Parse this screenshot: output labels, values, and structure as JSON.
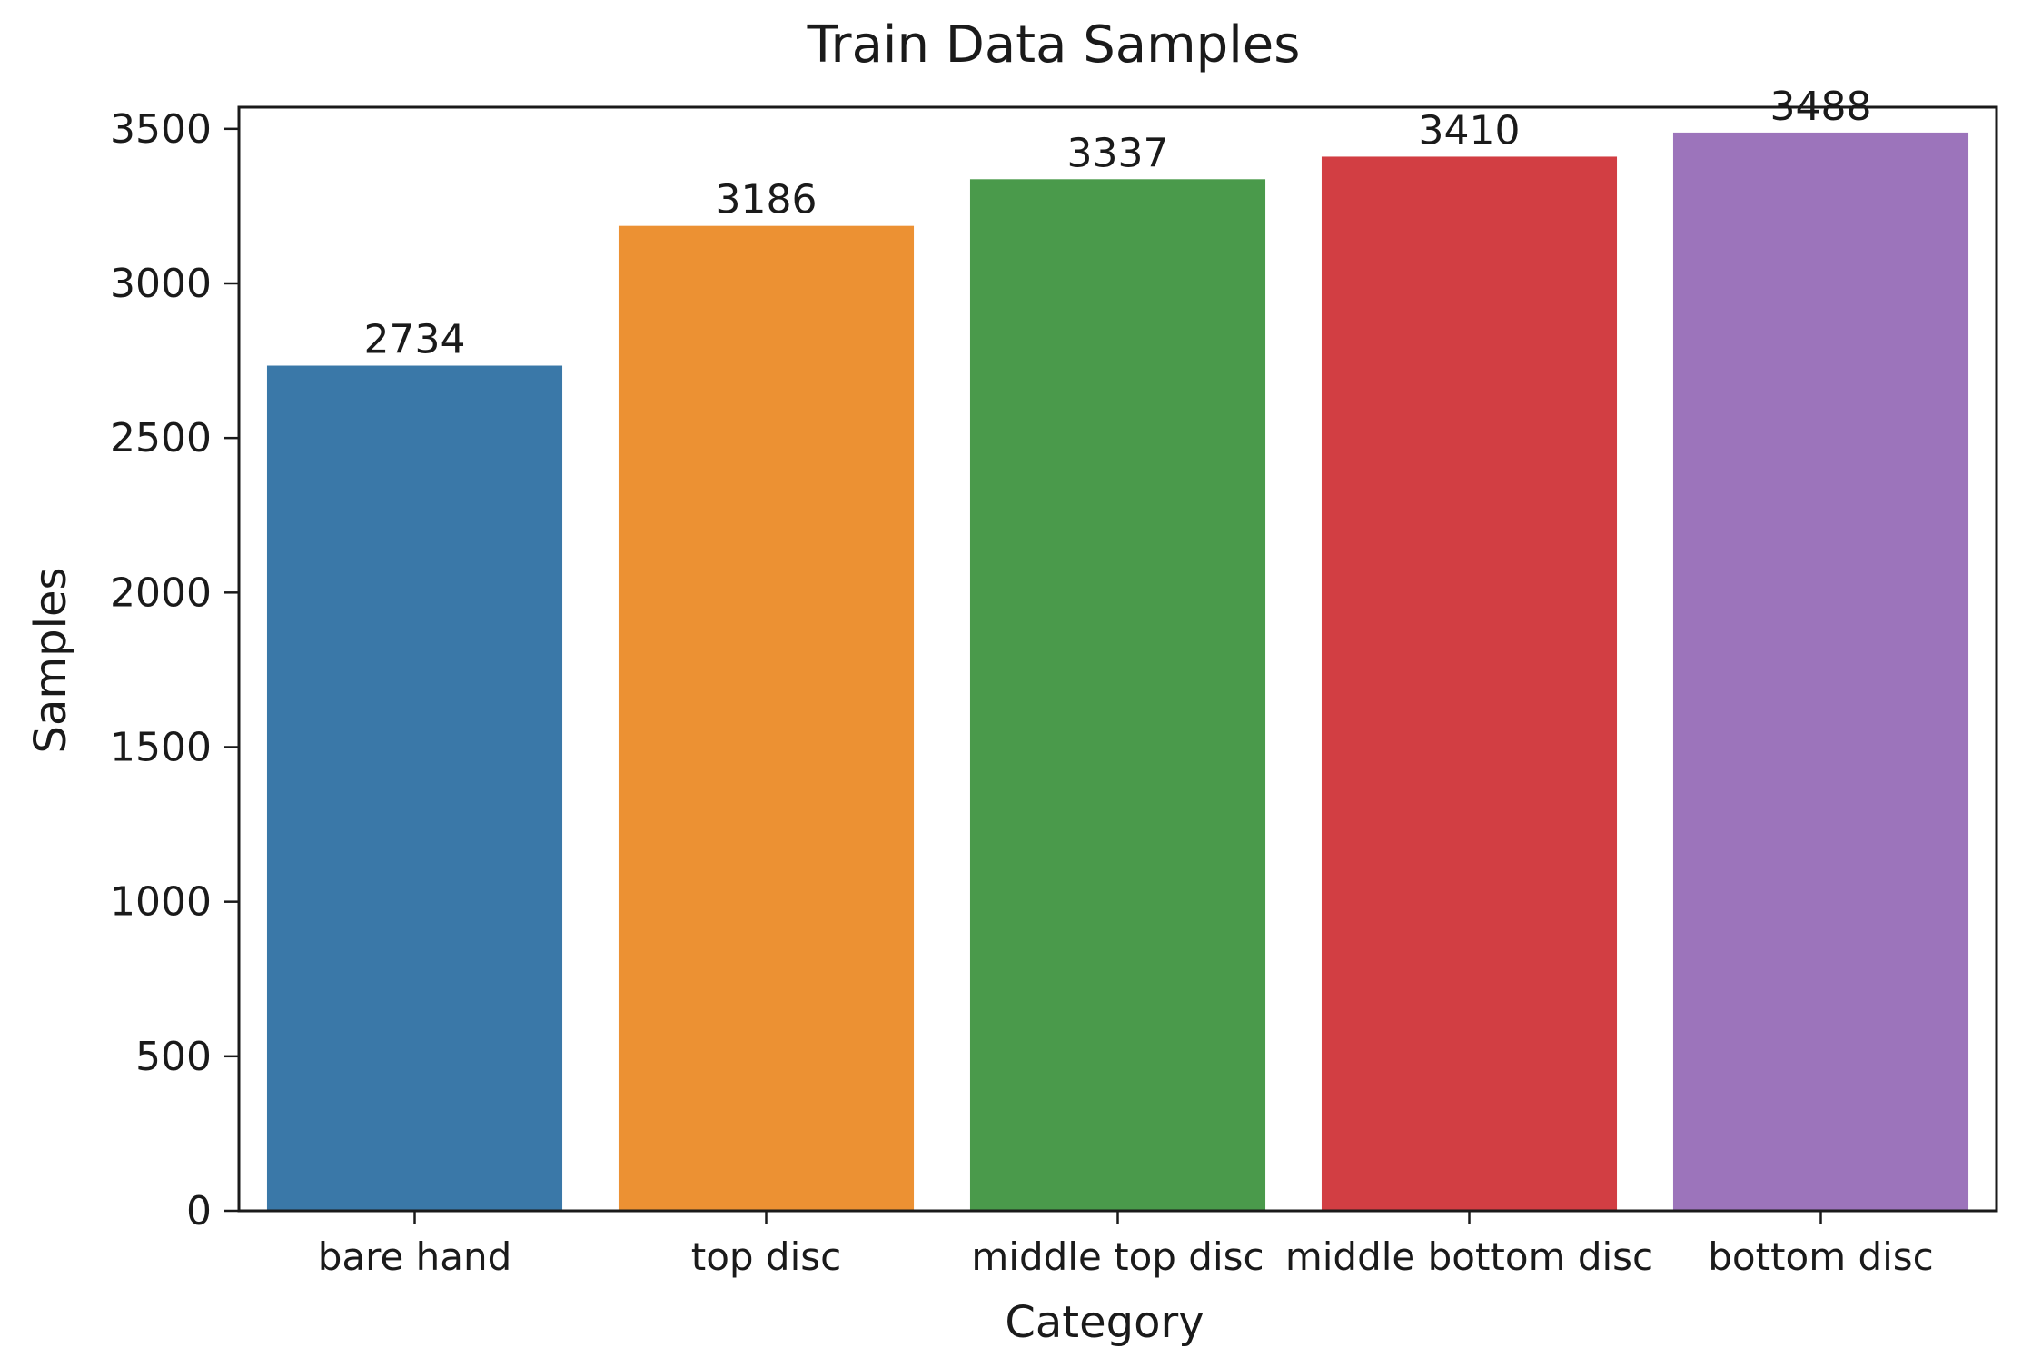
{
  "chart_data": {
    "type": "bar",
    "title": "Train Data Samples",
    "xlabel": "Category",
    "ylabel": "Samples",
    "categories": [
      "bare hand",
      "top disc",
      "middle top disc",
      "middle bottom disc",
      "bottom disc"
    ],
    "values": [
      2734,
      3186,
      3337,
      3410,
      3488
    ],
    "data_labels": [
      "2734",
      "3186",
      "3337",
      "3410",
      "3488"
    ],
    "colors": [
      "#3a78a8",
      "#ec9133",
      "#4a9a4b",
      "#d23e43",
      "#9c74bb"
    ],
    "ylim": [
      0,
      3570
    ],
    "yticks": [
      0,
      500,
      1000,
      1500,
      2000,
      2500,
      3000,
      3500
    ],
    "ytick_labels": [
      "0",
      "500",
      "1000",
      "1500",
      "2000",
      "2500",
      "3000",
      "3500"
    ],
    "grid": false,
    "legend": "none"
  }
}
